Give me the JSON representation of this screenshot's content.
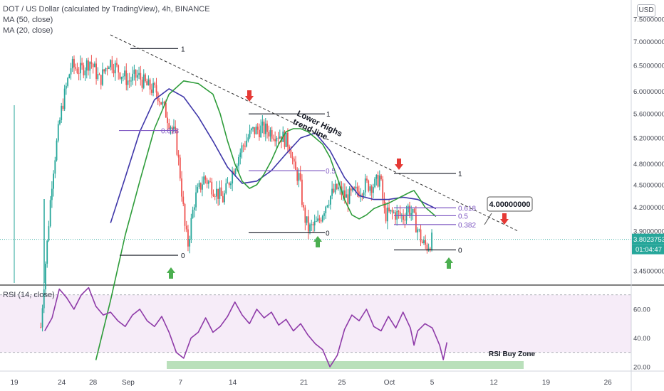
{
  "legend": {
    "title": "DOT / US Dollar (calculated by TradingView), 4h, BINANCE",
    "ma50": "MA (50, close)",
    "ma20": "MA (20, close)",
    "rsi": "RSI (14, close)"
  },
  "currency_button": "USD",
  "colors": {
    "up": "#26a69a",
    "down": "#ef5350",
    "ma50": "#3f37a9",
    "ma20": "#2e9c3a",
    "rsi": "#8e3aa8",
    "fib": "#7e57c2",
    "price_tag": "#26a69a",
    "arrow_up": "#4caf50",
    "arrow_down": "#e53935"
  },
  "chart_data": {
    "type": "candlestick",
    "timeframe": "4h",
    "symbol": "DOT / US Dollar",
    "y_axis": {
      "scale": "log",
      "ticks": [
        "7.50000000",
        "7.00000000",
        "6.50000000",
        "6.00000000",
        "5.60000000",
        "5.20000000",
        "4.80000000",
        "4.50000000",
        "4.20000000",
        "3.90000000",
        "3.45000000"
      ]
    },
    "x_axis": {
      "ticks": [
        "19",
        "24",
        "28",
        "Sep",
        "7",
        "14",
        "21",
        "25",
        "Oct",
        "5",
        "12",
        "19",
        "26"
      ]
    },
    "rsi_axis": {
      "ticks": [
        "60.00",
        "40.00",
        "20.00"
      ],
      "range": [
        17,
        76
      ]
    },
    "current_price": "3.80237531",
    "countdown": "01:04:47",
    "partial_axis_label": "3.",
    "callout": "4.00000000",
    "annotations": {
      "trend_label": "Lower Highs\ntrend-line",
      "rsi_zone_label": "RSI Buy Zone"
    },
    "fib_levels": [
      {
        "label": "1",
        "price": 6.85
      },
      {
        "label": "0.618",
        "price": 5.32
      },
      {
        "label": "0",
        "price": 3.62
      },
      {
        "label": "1",
        "price": 5.6
      },
      {
        "label": "0.5",
        "price": 4.7
      },
      {
        "label": "0",
        "price": 3.88
      },
      {
        "label": "1",
        "price": 4.66
      },
      {
        "label": "0.618",
        "price": 4.19
      },
      {
        "label": "0.5",
        "price": 4.09
      },
      {
        "label": "0.382",
        "price": 3.98
      },
      {
        "label": "0",
        "price": 3.68
      }
    ],
    "ma20_path": [
      [
        10,
        2.62
      ],
      [
        12,
        3.15
      ],
      [
        14,
        3.85
      ],
      [
        16,
        4.55
      ],
      [
        18,
        5.35
      ],
      [
        20,
        5.95
      ],
      [
        22,
        6.2
      ],
      [
        24,
        6.15
      ],
      [
        26,
        5.95
      ],
      [
        27,
        5.6
      ],
      [
        28,
        5.15
      ],
      [
        29,
        4.8
      ],
      [
        30,
        4.55
      ],
      [
        31,
        4.45
      ],
      [
        32,
        4.5
      ],
      [
        33,
        4.65
      ],
      [
        34,
        4.85
      ],
      [
        35,
        5.1
      ],
      [
        36,
        5.3
      ],
      [
        37,
        5.35
      ],
      [
        38,
        5.35
      ],
      [
        39,
        5.3
      ],
      [
        40,
        5.2
      ],
      [
        41,
        5.1
      ],
      [
        42,
        4.9
      ],
      [
        43,
        4.6
      ],
      [
        44,
        4.3
      ],
      [
        45,
        4.1
      ],
      [
        46,
        4.05
      ],
      [
        47,
        4.1
      ],
      [
        48,
        4.18
      ],
      [
        49,
        4.22
      ],
      [
        50,
        4.25
      ],
      [
        51,
        4.3
      ],
      [
        52,
        4.35
      ],
      [
        53,
        4.4
      ],
      [
        53.5,
        4.42
      ],
      [
        54,
        4.35
      ],
      [
        55,
        4.2
      ],
      [
        56,
        4.12
      ],
      [
        56.5,
        4.08
      ]
    ],
    "ma50_path": [
      [
        12,
        4.0
      ],
      [
        14,
        4.6
      ],
      [
        16,
        5.3
      ],
      [
        18,
        5.85
      ],
      [
        20,
        6.05
      ],
      [
        22,
        5.9
      ],
      [
        24,
        5.55
      ],
      [
        26,
        5.15
      ],
      [
        28,
        4.75
      ],
      [
        30,
        4.52
      ],
      [
        32,
        4.55
      ],
      [
        34,
        4.7
      ],
      [
        36,
        4.95
      ],
      [
        38,
        5.2
      ],
      [
        40,
        5.28
      ],
      [
        42,
        5.0
      ],
      [
        44,
        4.6
      ],
      [
        46,
        4.35
      ],
      [
        48,
        4.3
      ],
      [
        50,
        4.3
      ],
      [
        52,
        4.33
      ],
      [
        54,
        4.3
      ],
      [
        55,
        4.25
      ],
      [
        56.5,
        4.18
      ]
    ],
    "rsi_path": [
      [
        3,
        45
      ],
      [
        4,
        54
      ],
      [
        5,
        74
      ],
      [
        6,
        68
      ],
      [
        7,
        60
      ],
      [
        8,
        70
      ],
      [
        9,
        75
      ],
      [
        10,
        62
      ],
      [
        11,
        56
      ],
      [
        12,
        58
      ],
      [
        13,
        52
      ],
      [
        14,
        48
      ],
      [
        15,
        56
      ],
      [
        16,
        60
      ],
      [
        17,
        52
      ],
      [
        18,
        48
      ],
      [
        19,
        55
      ],
      [
        20,
        44
      ],
      [
        21,
        30
      ],
      [
        22,
        26
      ],
      [
        23,
        40
      ],
      [
        24,
        44
      ],
      [
        25,
        54
      ],
      [
        26,
        44
      ],
      [
        27,
        48
      ],
      [
        28,
        55
      ],
      [
        29,
        65
      ],
      [
        30,
        56
      ],
      [
        31,
        50
      ],
      [
        32,
        60
      ],
      [
        33,
        54
      ],
      [
        34,
        58
      ],
      [
        35,
        49
      ],
      [
        36,
        53
      ],
      [
        37,
        45
      ],
      [
        38,
        50
      ],
      [
        39,
        42
      ],
      [
        40,
        36
      ],
      [
        41,
        32
      ],
      [
        42,
        20
      ],
      [
        43,
        28
      ],
      [
        44,
        46
      ],
      [
        45,
        56
      ],
      [
        46,
        52
      ],
      [
        47,
        60
      ],
      [
        48,
        48
      ],
      [
        49,
        45
      ],
      [
        50,
        55
      ],
      [
        51,
        47
      ],
      [
        52,
        58
      ],
      [
        53,
        47
      ],
      [
        53.5,
        35
      ],
      [
        54,
        45
      ],
      [
        55,
        50
      ],
      [
        56,
        47
      ],
      [
        57,
        35
      ],
      [
        57.5,
        25
      ],
      [
        58,
        37
      ]
    ]
  }
}
